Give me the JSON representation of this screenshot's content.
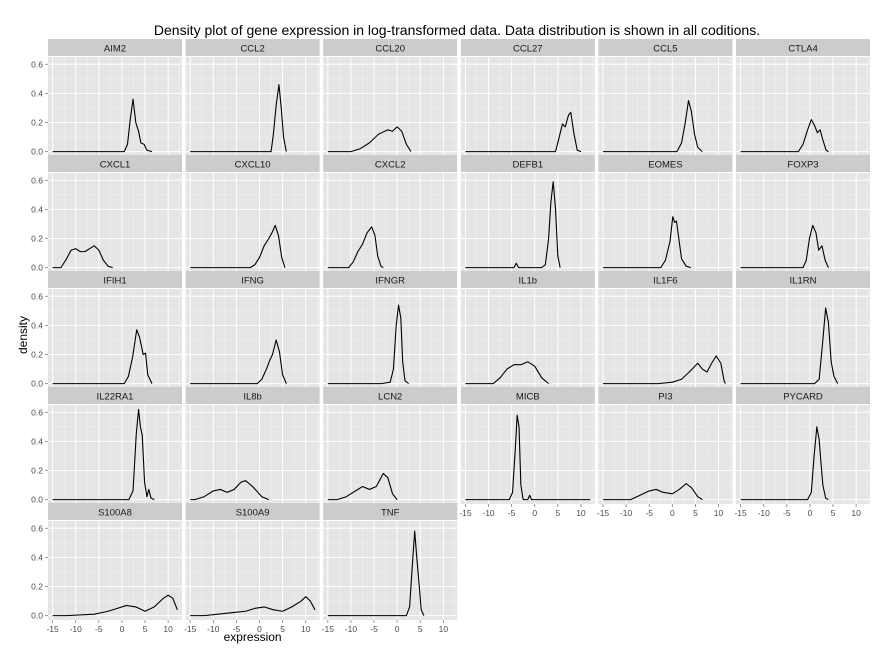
{
  "chart_data": {
    "type": "line",
    "title": "Density plot of gene expression in log-transformed data. Data distribution is shown in all coditions.",
    "xlabel": "expression",
    "ylabel": "density",
    "xlim": [
      -16,
      13
    ],
    "ylim": [
      -0.03,
      0.65
    ],
    "x_ticks": [
      -15,
      -10,
      -5,
      0,
      5,
      10
    ],
    "y_ticks": [
      0.0,
      0.2,
      0.4,
      0.6
    ],
    "x_tick_labels": [
      "-15",
      "-10",
      "-5",
      "0",
      "5",
      "10"
    ],
    "y_tick_labels": [
      "0.0",
      "0.2",
      "0.4",
      "0.6"
    ],
    "grid": true,
    "layout": "facet-wrap, 6 columns",
    "panel_background": "#E5E5E5",
    "strip_background": "#CCCCCC",
    "line_color": "#000000",
    "panels": [
      {
        "name": "AIM2",
        "points": [
          [
            -15,
            0
          ],
          [
            0.5,
            0
          ],
          [
            1.2,
            0.05
          ],
          [
            1.8,
            0.22
          ],
          [
            2.4,
            0.36
          ],
          [
            3.0,
            0.2
          ],
          [
            3.6,
            0.14
          ],
          [
            4.1,
            0.06
          ],
          [
            4.8,
            0.05
          ],
          [
            5.4,
            0.01
          ],
          [
            6.5,
            0
          ]
        ]
      },
      {
        "name": "CCL2",
        "points": [
          [
            -15,
            0
          ],
          [
            2.5,
            0
          ],
          [
            3.0,
            0.12
          ],
          [
            3.6,
            0.32
          ],
          [
            4.2,
            0.46
          ],
          [
            4.7,
            0.3
          ],
          [
            5.2,
            0.1
          ],
          [
            5.8,
            0
          ]
        ]
      },
      {
        "name": "CCL20",
        "points": [
          [
            -15,
            0
          ],
          [
            -10,
            0
          ],
          [
            -8,
            0.02
          ],
          [
            -6,
            0.06
          ],
          [
            -4,
            0.12
          ],
          [
            -2,
            0.15
          ],
          [
            -1,
            0.14
          ],
          [
            0,
            0.17
          ],
          [
            1,
            0.14
          ],
          [
            2,
            0.05
          ],
          [
            3,
            0
          ]
        ]
      },
      {
        "name": "CCL27",
        "points": [
          [
            -15,
            0
          ],
          [
            4.5,
            0
          ],
          [
            5.3,
            0.1
          ],
          [
            6.0,
            0.19
          ],
          [
            6.6,
            0.17
          ],
          [
            7.3,
            0.25
          ],
          [
            7.8,
            0.27
          ],
          [
            8.5,
            0.12
          ],
          [
            9.2,
            0.01
          ],
          [
            10,
            0
          ]
        ]
      },
      {
        "name": "CCL5",
        "points": [
          [
            -15,
            0
          ],
          [
            1,
            0
          ],
          [
            2,
            0.06
          ],
          [
            2.8,
            0.2
          ],
          [
            3.5,
            0.35
          ],
          [
            4.1,
            0.28
          ],
          [
            4.8,
            0.12
          ],
          [
            5.5,
            0.03
          ],
          [
            6.5,
            0
          ]
        ]
      },
      {
        "name": "CTLA4",
        "points": [
          [
            -15,
            0
          ],
          [
            -2.5,
            0
          ],
          [
            -1.5,
            0.05
          ],
          [
            -0.5,
            0.15
          ],
          [
            0.3,
            0.22
          ],
          [
            1.0,
            0.18
          ],
          [
            1.6,
            0.13
          ],
          [
            2.2,
            0.15
          ],
          [
            2.8,
            0.08
          ],
          [
            3.5,
            0.01
          ],
          [
            4,
            0
          ]
        ]
      },
      {
        "name": "CXCL1",
        "points": [
          [
            -15,
            0
          ],
          [
            -13.2,
            0
          ],
          [
            -12,
            0.06
          ],
          [
            -11,
            0.12
          ],
          [
            -10,
            0.13
          ],
          [
            -9,
            0.11
          ],
          [
            -8,
            0.11
          ],
          [
            -7,
            0.13
          ],
          [
            -6,
            0.15
          ],
          [
            -5,
            0.12
          ],
          [
            -4,
            0.05
          ],
          [
            -3,
            0.01
          ],
          [
            -2,
            0
          ]
        ]
      },
      {
        "name": "CXCL10",
        "points": [
          [
            -15,
            0
          ],
          [
            -2,
            0
          ],
          [
            -1,
            0.02
          ],
          [
            0,
            0.07
          ],
          [
            1,
            0.15
          ],
          [
            2,
            0.2
          ],
          [
            2.7,
            0.24
          ],
          [
            3.4,
            0.29
          ],
          [
            4.1,
            0.22
          ],
          [
            4.8,
            0.07
          ],
          [
            5.5,
            0
          ]
        ]
      },
      {
        "name": "CXCL2",
        "points": [
          [
            -15,
            0
          ],
          [
            -10.5,
            0
          ],
          [
            -9.5,
            0.04
          ],
          [
            -8.5,
            0.11
          ],
          [
            -7.5,
            0.16
          ],
          [
            -6.5,
            0.24
          ],
          [
            -5.5,
            0.28
          ],
          [
            -4.8,
            0.22
          ],
          [
            -4.2,
            0.08
          ],
          [
            -3.5,
            0.01
          ],
          [
            -3,
            0
          ]
        ]
      },
      {
        "name": "DEFB1",
        "points": [
          [
            -15,
            0
          ],
          [
            -4.5,
            0
          ],
          [
            -4.0,
            0.03
          ],
          [
            -3.5,
            0
          ],
          [
            1.5,
            0
          ],
          [
            2.3,
            0.02
          ],
          [
            3.0,
            0.2
          ],
          [
            3.5,
            0.45
          ],
          [
            4.0,
            0.59
          ],
          [
            4.5,
            0.4
          ],
          [
            5.0,
            0.08
          ],
          [
            5.5,
            0
          ]
        ]
      },
      {
        "name": "EOMES",
        "points": [
          [
            -15,
            0
          ],
          [
            -2.5,
            0
          ],
          [
            -1.5,
            0.05
          ],
          [
            -0.5,
            0.18
          ],
          [
            0.1,
            0.35
          ],
          [
            0.5,
            0.31
          ],
          [
            0.9,
            0.32
          ],
          [
            1.4,
            0.2
          ],
          [
            2.0,
            0.06
          ],
          [
            3.0,
            0.01
          ],
          [
            4,
            0
          ]
        ]
      },
      {
        "name": "FOXP3",
        "points": [
          [
            -15,
            0
          ],
          [
            -1.5,
            0
          ],
          [
            -0.8,
            0.05
          ],
          [
            -0.1,
            0.2
          ],
          [
            0.6,
            0.29
          ],
          [
            1.3,
            0.24
          ],
          [
            1.9,
            0.12
          ],
          [
            2.6,
            0.15
          ],
          [
            3.3,
            0.05
          ],
          [
            4,
            0
          ]
        ]
      },
      {
        "name": "IFIH1",
        "points": [
          [
            -15,
            0
          ],
          [
            0.5,
            0
          ],
          [
            1.4,
            0.05
          ],
          [
            2.3,
            0.18
          ],
          [
            3.2,
            0.37
          ],
          [
            3.8,
            0.32
          ],
          [
            4.2,
            0.26
          ],
          [
            4.6,
            0.2
          ],
          [
            5.1,
            0.21
          ],
          [
            5.6,
            0.06
          ],
          [
            6.5,
            0
          ]
        ]
      },
      {
        "name": "IFNG",
        "points": [
          [
            -15,
            0
          ],
          [
            -0.5,
            0
          ],
          [
            0.5,
            0.03
          ],
          [
            1.5,
            0.1
          ],
          [
            2.2,
            0.16
          ],
          [
            2.8,
            0.2
          ],
          [
            3.6,
            0.3
          ],
          [
            4.3,
            0.22
          ],
          [
            5.0,
            0.06
          ],
          [
            5.8,
            0
          ]
        ]
      },
      {
        "name": "IFNGR",
        "points": [
          [
            -15,
            0
          ],
          [
            -3.5,
            0
          ],
          [
            -1.5,
            0.01
          ],
          [
            -0.8,
            0.1
          ],
          [
            -0.2,
            0.4
          ],
          [
            0.3,
            0.54
          ],
          [
            0.8,
            0.45
          ],
          [
            1.2,
            0.15
          ],
          [
            1.7,
            0.02
          ],
          [
            2.5,
            0
          ]
        ]
      },
      {
        "name": "IL1b",
        "points": [
          [
            -15,
            0
          ],
          [
            -9,
            0
          ],
          [
            -7.5,
            0.04
          ],
          [
            -6,
            0.1
          ],
          [
            -4.5,
            0.13
          ],
          [
            -3,
            0.13
          ],
          [
            -1.5,
            0.15
          ],
          [
            0,
            0.12
          ],
          [
            1.5,
            0.04
          ],
          [
            3,
            0
          ]
        ]
      },
      {
        "name": "IL1F6",
        "points": [
          [
            -15,
            0
          ],
          [
            -3,
            0
          ],
          [
            0,
            0.01
          ],
          [
            2,
            0.03
          ],
          [
            4,
            0.09
          ],
          [
            5.5,
            0.14
          ],
          [
            6.5,
            0.1
          ],
          [
            7.5,
            0.08
          ],
          [
            8.5,
            0.14
          ],
          [
            9.5,
            0.19
          ],
          [
            10.5,
            0.14
          ],
          [
            11.2,
            0.02
          ],
          [
            11.5,
            0
          ]
        ]
      },
      {
        "name": "IL1RN",
        "points": [
          [
            -15,
            0
          ],
          [
            1,
            0
          ],
          [
            2.0,
            0.03
          ],
          [
            2.8,
            0.3
          ],
          [
            3.4,
            0.52
          ],
          [
            4.0,
            0.42
          ],
          [
            4.6,
            0.15
          ],
          [
            5.2,
            0.05
          ],
          [
            6.0,
            0
          ]
        ]
      },
      {
        "name": "IL22RA1",
        "points": [
          [
            -15,
            0
          ],
          [
            1.5,
            0
          ],
          [
            2.4,
            0.06
          ],
          [
            3.1,
            0.45
          ],
          [
            3.6,
            0.62
          ],
          [
            4.0,
            0.5
          ],
          [
            4.4,
            0.44
          ],
          [
            4.9,
            0.12
          ],
          [
            5.4,
            0.02
          ],
          [
            5.8,
            0.07
          ],
          [
            6.3,
            0.01
          ],
          [
            7,
            0
          ]
        ]
      },
      {
        "name": "IL8b",
        "points": [
          [
            -15,
            0
          ],
          [
            -14,
            0
          ],
          [
            -12,
            0.02
          ],
          [
            -10,
            0.06
          ],
          [
            -8.5,
            0.07
          ],
          [
            -7,
            0.05
          ],
          [
            -5.5,
            0.07
          ],
          [
            -4,
            0.12
          ],
          [
            -3,
            0.13
          ],
          [
            -1.5,
            0.09
          ],
          [
            0.5,
            0.02
          ],
          [
            2,
            0
          ]
        ]
      },
      {
        "name": "LCN2",
        "points": [
          [
            -15,
            0
          ],
          [
            -13,
            0
          ],
          [
            -11,
            0.02
          ],
          [
            -9,
            0.06
          ],
          [
            -7.5,
            0.09
          ],
          [
            -6,
            0.07
          ],
          [
            -4.5,
            0.09
          ],
          [
            -3,
            0.18
          ],
          [
            -2,
            0.15
          ],
          [
            -1,
            0.04
          ],
          [
            0,
            0
          ]
        ]
      },
      {
        "name": "MICB",
        "points": [
          [
            -15,
            0
          ],
          [
            -5.5,
            0
          ],
          [
            -4.8,
            0.05
          ],
          [
            -4.2,
            0.35
          ],
          [
            -3.8,
            0.58
          ],
          [
            -3.4,
            0.5
          ],
          [
            -3.0,
            0.1
          ],
          [
            -2.5,
            0
          ],
          [
            -1.5,
            0
          ],
          [
            -1.1,
            0.03
          ],
          [
            -0.7,
            0
          ],
          [
            12,
            0
          ]
        ]
      },
      {
        "name": "PI3",
        "points": [
          [
            -15,
            0
          ],
          [
            -9,
            0
          ],
          [
            -7,
            0.03
          ],
          [
            -5,
            0.06
          ],
          [
            -3.5,
            0.07
          ],
          [
            -2,
            0.05
          ],
          [
            0,
            0.04
          ],
          [
            1.5,
            0.07
          ],
          [
            3.0,
            0.11
          ],
          [
            4.2,
            0.08
          ],
          [
            5.5,
            0.02
          ],
          [
            6.5,
            0
          ]
        ]
      },
      {
        "name": "PYCARD",
        "points": [
          [
            -15,
            0
          ],
          [
            -0.5,
            0
          ],
          [
            0.3,
            0.05
          ],
          [
            0.9,
            0.3
          ],
          [
            1.5,
            0.5
          ],
          [
            2.0,
            0.41
          ],
          [
            2.4,
            0.25
          ],
          [
            2.8,
            0.1
          ],
          [
            3.4,
            0.01
          ],
          [
            4,
            0
          ]
        ]
      },
      {
        "name": "S100A8",
        "points": [
          [
            -15,
            0
          ],
          [
            -12,
            0
          ],
          [
            -6,
            0.01
          ],
          [
            -3,
            0.03
          ],
          [
            -1,
            0.05
          ],
          [
            1,
            0.07
          ],
          [
            3,
            0.06
          ],
          [
            5,
            0.03
          ],
          [
            7,
            0.06
          ],
          [
            9,
            0.12
          ],
          [
            10,
            0.14
          ],
          [
            11,
            0.12
          ],
          [
            12,
            0.04
          ]
        ]
      },
      {
        "name": "S100A9",
        "points": [
          [
            -15,
            0
          ],
          [
            -12,
            0
          ],
          [
            -9,
            0.01
          ],
          [
            -6,
            0.02
          ],
          [
            -3,
            0.03
          ],
          [
            -1,
            0.05
          ],
          [
            1,
            0.06
          ],
          [
            3,
            0.04
          ],
          [
            5,
            0.03
          ],
          [
            7,
            0.06
          ],
          [
            9,
            0.1
          ],
          [
            10,
            0.13
          ],
          [
            11,
            0.1
          ],
          [
            12,
            0.04
          ]
        ]
      },
      {
        "name": "TNF",
        "points": [
          [
            -15,
            0
          ],
          [
            2.0,
            0
          ],
          [
            2.7,
            0.06
          ],
          [
            3.3,
            0.35
          ],
          [
            3.8,
            0.58
          ],
          [
            4.3,
            0.38
          ],
          [
            4.8,
            0.2
          ],
          [
            5.2,
            0.04
          ],
          [
            5.8,
            0
          ]
        ]
      }
    ]
  }
}
